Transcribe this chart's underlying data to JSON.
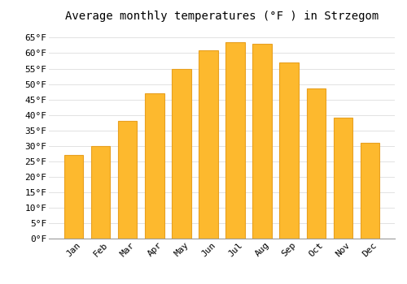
{
  "title": "Average monthly temperatures (°F ) in Strzegom",
  "months": [
    "Jan",
    "Feb",
    "Mar",
    "Apr",
    "May",
    "Jun",
    "Jul",
    "Aug",
    "Sep",
    "Oct",
    "Nov",
    "Dec"
  ],
  "values": [
    27,
    30,
    38,
    47,
    55,
    61,
    63.5,
    63,
    57,
    48.5,
    39,
    31
  ],
  "bar_color": "#FDB92E",
  "bar_edge_color": "#E8A020",
  "background_color": "#FFFFFF",
  "grid_color": "#DDDDDD",
  "title_fontsize": 10,
  "tick_fontsize": 8,
  "ylim": [
    0,
    68
  ],
  "yticks": [
    0,
    5,
    10,
    15,
    20,
    25,
    30,
    35,
    40,
    45,
    50,
    55,
    60,
    65
  ]
}
